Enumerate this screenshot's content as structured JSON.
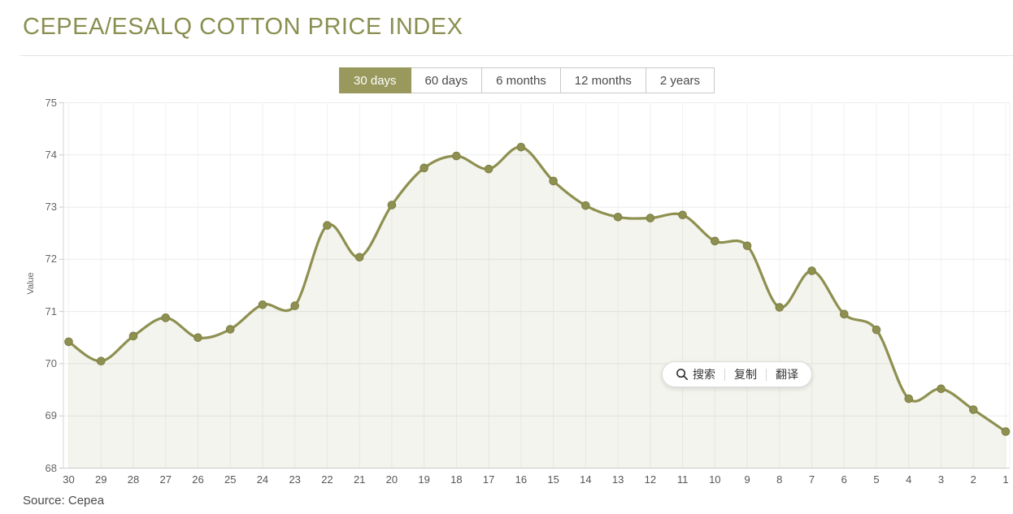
{
  "page": {
    "title": "CEPEA/ESALQ COTTON PRICE INDEX",
    "source": "Source: Cepea"
  },
  "tabs": [
    {
      "label": "30 days",
      "active": true
    },
    {
      "label": "60 days",
      "active": false
    },
    {
      "label": "6 months",
      "active": false
    },
    {
      "label": "12 months",
      "active": false
    },
    {
      "label": "2 years",
      "active": false
    }
  ],
  "selection_popup": {
    "icon": "search-icon",
    "search_label": "搜索",
    "copy_label": "复制",
    "translate_label": "翻译"
  },
  "chart_data": {
    "type": "area",
    "title": "CEPEA/ESALQ COTTON PRICE INDEX",
    "xlabel": "",
    "ylabel": "Value",
    "ylim": [
      68,
      75
    ],
    "yticks": [
      68,
      69,
      70,
      71,
      72,
      73,
      74,
      75
    ],
    "grid": true,
    "x": [
      30,
      29,
      28,
      27,
      26,
      25,
      24,
      23,
      22,
      21,
      20,
      19,
      18,
      17,
      16,
      15,
      14,
      13,
      12,
      11,
      10,
      9,
      8,
      7,
      6,
      5,
      4,
      3,
      2,
      1
    ],
    "values": [
      70.42,
      70.05,
      70.53,
      70.88,
      70.5,
      70.66,
      71.13,
      71.11,
      72.65,
      72.04,
      73.04,
      73.75,
      73.98,
      73.73,
      74.15,
      73.5,
      73.03,
      72.81,
      72.79,
      72.85,
      72.35,
      72.26,
      71.08,
      71.78,
      70.95,
      70.65,
      69.33,
      69.52,
      69.12,
      68.7
    ],
    "line_color": "#8e9050",
    "marker_color": "#8e9050",
    "marker_stroke": "#7d7f45",
    "fill_color": "rgba(142,144,80,0.10)",
    "grid_color_h": "#ebebeb",
    "grid_color_v": "#f1f1ec",
    "axis_color": "#d6d6d6"
  }
}
